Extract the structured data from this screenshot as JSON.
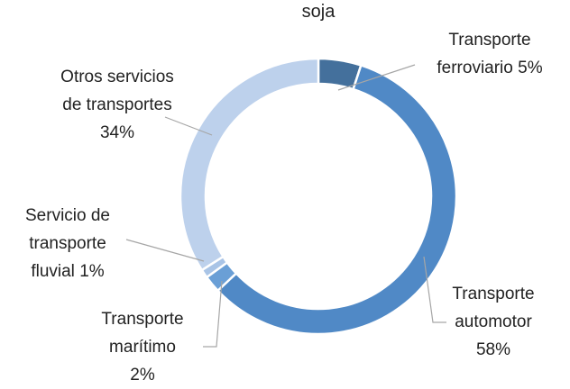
{
  "chart_data": {
    "type": "donut",
    "title": "soja",
    "categories": [
      "Transporte ferroviario",
      "Transporte automotor",
      "Transporte marítimo",
      "Servicio de transporte fluvial",
      "Otros servicios de transportes"
    ],
    "values": [
      5,
      58,
      2,
      1,
      34
    ],
    "value_labels": [
      "5%",
      "58%",
      "2%",
      "1%",
      "34%"
    ],
    "colors": [
      "#44709c",
      "#5089c6",
      "#6a9fd6",
      "#a9c4e6",
      "#bdd1ec"
    ]
  }
}
